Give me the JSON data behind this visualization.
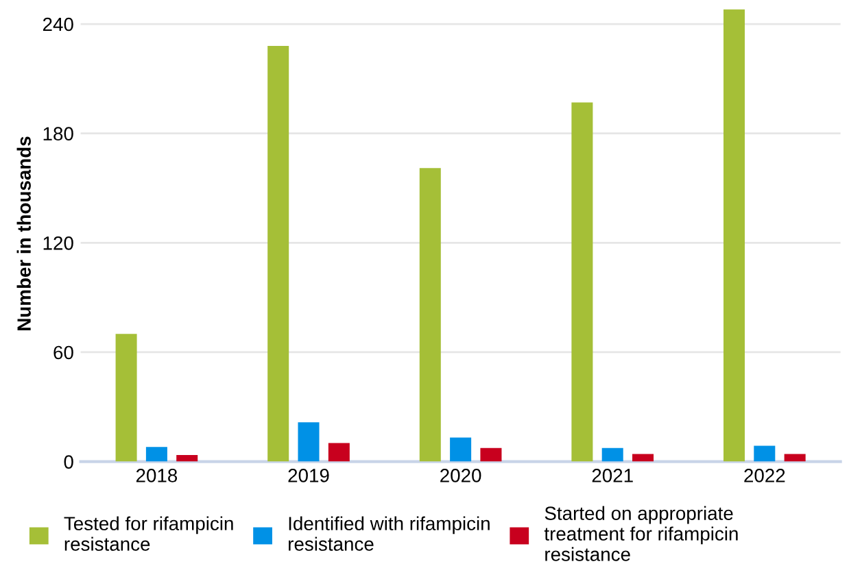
{
  "chart_data": {
    "type": "bar",
    "ylabel": "Number in thousands",
    "categories": [
      "2018",
      "2019",
      "2020",
      "2021",
      "2022"
    ],
    "series": [
      {
        "name": "Tested for rifampicin\nresistance",
        "color": "#a5bf37",
        "values": [
          70,
          228,
          161,
          197,
          248
        ]
      },
      {
        "name": "Identified with rifampicin\nresistance",
        "color": "#0091e6",
        "values": [
          8,
          21.6,
          13.2,
          7.5,
          8.7
        ]
      },
      {
        "name": "Started on appropriate\ntreatment for rifampicin\nresistance",
        "color": "#c8001e",
        "values": [
          3.6,
          10.2,
          7.5,
          4.2,
          4.2
        ]
      }
    ],
    "ylim": [
      0,
      250
    ],
    "yticks": [
      0,
      60,
      120,
      180,
      240
    ],
    "grid": "y",
    "legend": "bottom"
  }
}
